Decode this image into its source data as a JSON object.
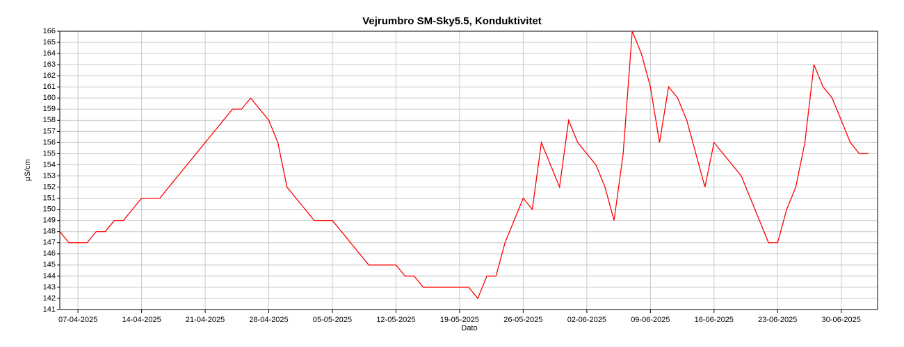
{
  "chart_data": {
    "type": "line",
    "title": "Vejrumbro SM-Sky5.5, Konduktivitet",
    "xlabel": "Dato",
    "ylabel": "μS/cm",
    "x": [
      "2025-04-05",
      "2025-04-06",
      "2025-04-07",
      "2025-04-08",
      "2025-04-09",
      "2025-04-10",
      "2025-04-11",
      "2025-04-12",
      "2025-04-13",
      "2025-04-14",
      "2025-04-15",
      "2025-04-16",
      "2025-04-17",
      "2025-04-18",
      "2025-04-19",
      "2025-04-20",
      "2025-04-21",
      "2025-04-22",
      "2025-04-23",
      "2025-04-24",
      "2025-04-25",
      "2025-04-26",
      "2025-04-27",
      "2025-04-28",
      "2025-04-29",
      "2025-04-30",
      "2025-05-01",
      "2025-05-02",
      "2025-05-03",
      "2025-05-04",
      "2025-05-05",
      "2025-05-06",
      "2025-05-07",
      "2025-05-08",
      "2025-05-09",
      "2025-05-10",
      "2025-05-11",
      "2025-05-12",
      "2025-05-13",
      "2025-05-14",
      "2025-05-15",
      "2025-05-16",
      "2025-05-17",
      "2025-05-18",
      "2025-05-19",
      "2025-05-20",
      "2025-05-21",
      "2025-05-22",
      "2025-05-23",
      "2025-05-24",
      "2025-05-25",
      "2025-05-26",
      "2025-05-27",
      "2025-05-28",
      "2025-05-29",
      "2025-05-30",
      "2025-05-31",
      "2025-06-01",
      "2025-06-02",
      "2025-06-03",
      "2025-06-04",
      "2025-06-05",
      "2025-06-06",
      "2025-06-07",
      "2025-06-08",
      "2025-06-09",
      "2025-06-10",
      "2025-06-11",
      "2025-06-12",
      "2025-06-13",
      "2025-06-14",
      "2025-06-15",
      "2025-06-16",
      "2025-06-17",
      "2025-06-18",
      "2025-06-19",
      "2025-06-20",
      "2025-06-21",
      "2025-06-22",
      "2025-06-23",
      "2025-06-24",
      "2025-06-25",
      "2025-06-26",
      "2025-06-27",
      "2025-06-28",
      "2025-06-29",
      "2025-06-30",
      "2025-07-01",
      "2025-07-02",
      "2025-07-03"
    ],
    "series": [
      {
        "name": "Konduktivitet",
        "color": "#ff0000",
        "values": [
          148,
          147,
          147,
          147,
          148,
          148,
          149,
          149,
          150,
          151,
          151,
          151,
          152,
          153,
          154,
          155,
          156,
          157,
          158,
          159,
          159,
          160,
          159,
          158,
          156,
          152,
          151,
          150,
          149,
          149,
          149,
          148,
          147,
          146,
          145,
          145,
          145,
          145,
          144,
          144,
          143,
          143,
          143,
          143,
          143,
          143,
          142,
          144,
          144,
          147,
          149,
          151,
          150,
          156,
          154,
          152,
          158,
          156,
          155,
          154,
          152,
          149,
          155,
          166,
          164,
          161,
          156,
          161,
          160,
          158,
          155,
          152,
          156,
          155,
          154,
          153,
          151,
          149,
          147,
          147,
          150,
          152,
          156,
          163,
          161,
          160,
          158,
          156,
          155,
          155
        ]
      }
    ],
    "xlim": [
      "2025-04-05",
      "2025-07-04"
    ],
    "xticks": [
      {
        "value": "2025-04-07",
        "label": "07-04-2025"
      },
      {
        "value": "2025-04-14",
        "label": "14-04-2025"
      },
      {
        "value": "2025-04-21",
        "label": "21-04-2025"
      },
      {
        "value": "2025-04-28",
        "label": "28-04-2025"
      },
      {
        "value": "2025-05-05",
        "label": "05-05-2025"
      },
      {
        "value": "2025-05-12",
        "label": "12-05-2025"
      },
      {
        "value": "2025-05-19",
        "label": "19-05-2025"
      },
      {
        "value": "2025-05-26",
        "label": "26-05-2025"
      },
      {
        "value": "2025-06-02",
        "label": "02-06-2025"
      },
      {
        "value": "2025-06-09",
        "label": "09-06-2025"
      },
      {
        "value": "2025-06-16",
        "label": "16-06-2025"
      },
      {
        "value": "2025-06-23",
        "label": "23-06-2025"
      },
      {
        "value": "2025-06-30",
        "label": "30-06-2025"
      }
    ],
    "ylim": [
      141,
      166
    ],
    "yticks": [
      141,
      142,
      143,
      144,
      145,
      146,
      147,
      148,
      149,
      150,
      151,
      152,
      153,
      154,
      155,
      156,
      157,
      158,
      159,
      160,
      161,
      162,
      163,
      164,
      165,
      166
    ],
    "grid": true
  }
}
